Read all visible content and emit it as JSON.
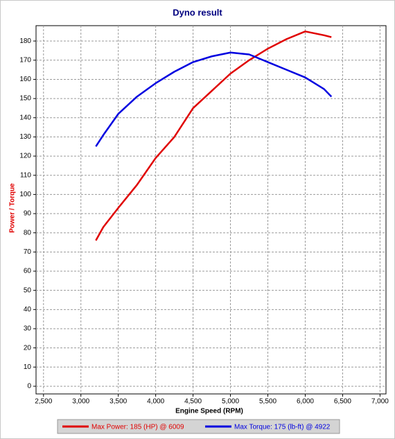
{
  "chart_data": {
    "type": "line",
    "title": "Dyno result",
    "xlabel": "Engine Speed (RPM)",
    "ylabel": "Power / Torque",
    "x": [
      3200,
      3300,
      3500,
      3750,
      4000,
      4250,
      4500,
      4750,
      5000,
      5250,
      5500,
      5750,
      6000,
      6250,
      6350
    ],
    "series": [
      {
        "name": "Max Power: 185 (HP) @ 6009",
        "color": "#e00000",
        "values": [
          76,
          83,
          93,
          105,
          119,
          130,
          145,
          154,
          163,
          170,
          176,
          181,
          185,
          183,
          182
        ]
      },
      {
        "name": "Max Torque: 175 (lb-ft) @ 4922",
        "color": "#0000e0",
        "values": [
          125,
          131,
          142,
          151,
          158,
          164,
          169,
          172,
          174,
          173,
          169,
          165,
          161,
          155,
          151
        ]
      }
    ],
    "xlim": [
      2400,
      7080
    ],
    "ylim": [
      -4,
      188
    ],
    "xticks": [
      {
        "value": 2500,
        "label": "2,500"
      },
      {
        "value": 3000,
        "label": "3,000"
      },
      {
        "value": 3500,
        "label": "3,500"
      },
      {
        "value": 4000,
        "label": "4,000"
      },
      {
        "value": 4500,
        "label": "4,500"
      },
      {
        "value": 5000,
        "label": "5,000"
      },
      {
        "value": 5500,
        "label": "5,500"
      },
      {
        "value": 6000,
        "label": "6,000"
      },
      {
        "value": 6500,
        "label": "6,500"
      },
      {
        "value": 7000,
        "label": "7,000"
      }
    ],
    "yticks": [
      0,
      10,
      20,
      30,
      40,
      50,
      60,
      70,
      80,
      90,
      100,
      110,
      120,
      130,
      140,
      150,
      160,
      170,
      180
    ],
    "grid": true
  }
}
